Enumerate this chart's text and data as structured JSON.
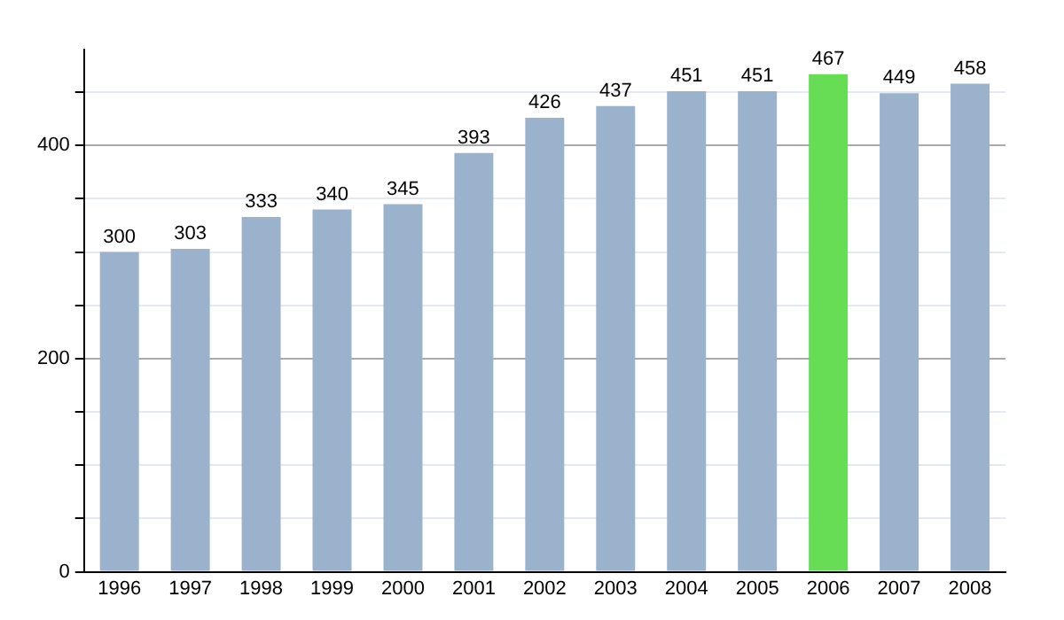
{
  "chart_data": {
    "type": "bar",
    "categories": [
      "1996",
      "1997",
      "1998",
      "1999",
      "2000",
      "2001",
      "2002",
      "2003",
      "2004",
      "2005",
      "2006",
      "2007",
      "2008"
    ],
    "values": [
      300,
      303,
      333,
      340,
      345,
      393,
      426,
      437,
      451,
      451,
      467,
      449,
      458
    ],
    "colors": [
      "#9ab2cc",
      "#9ab2cc",
      "#9ab2cc",
      "#9ab2cc",
      "#9ab2cc",
      "#9ab2cc",
      "#9ab2cc",
      "#9ab2cc",
      "#9ab2cc",
      "#9ab2cc",
      "#66dd55",
      "#9ab2cc",
      "#9ab2cc"
    ],
    "ylim": [
      0,
      490
    ],
    "yticks": [
      0,
      {
        "value": 50,
        "label": null
      },
      {
        "value": 100,
        "label": null
      },
      {
        "value": 150,
        "label": null
      },
      200,
      {
        "value": 250,
        "label": null
      },
      {
        "value": 300,
        "label": null
      },
      {
        "value": 350,
        "label": null
      },
      400,
      {
        "value": 450,
        "label": null
      }
    ],
    "grid": "y",
    "data_labels": true
  }
}
